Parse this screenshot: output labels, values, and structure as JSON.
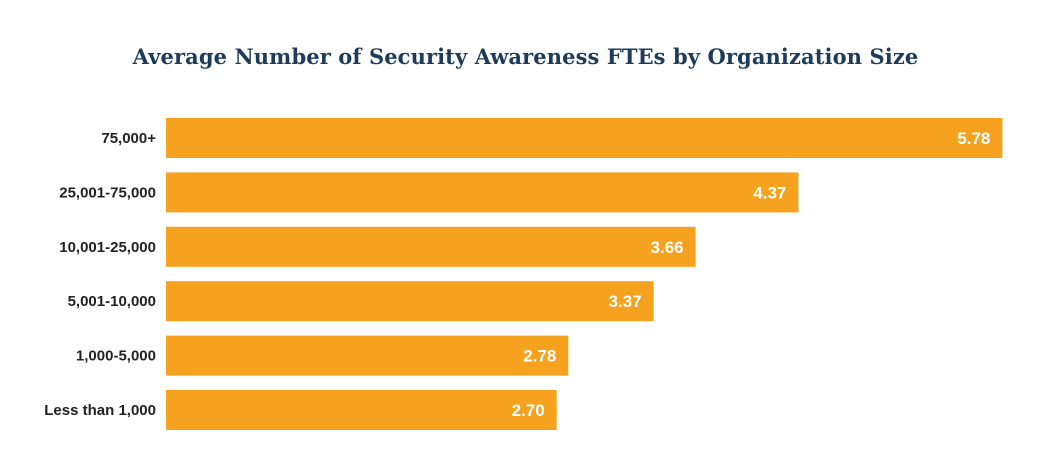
{
  "colors": {
    "bar": "#f6a21e",
    "title": "#1d3c5a",
    "label": "#222222",
    "value_label": "#ffffff"
  },
  "chart_data": {
    "type": "bar",
    "orientation": "horizontal",
    "title": "Average Number of Security Awareness FTEs by Organization Size",
    "xlabel": "",
    "ylabel": "",
    "xlim": [
      0,
      5.95
    ],
    "grid": false,
    "legend": "none",
    "categories": [
      "75,000+",
      "25,001-75,000",
      "10,001-25,000",
      "5,001-10,000",
      "1,000-5,000",
      "Less than 1,000"
    ],
    "values": [
      5.78,
      4.37,
      3.66,
      3.37,
      2.78,
      2.7
    ],
    "value_labels": [
      "5.78",
      "4.37",
      "3.66",
      "3.37",
      "2.78",
      "2.70"
    ]
  }
}
